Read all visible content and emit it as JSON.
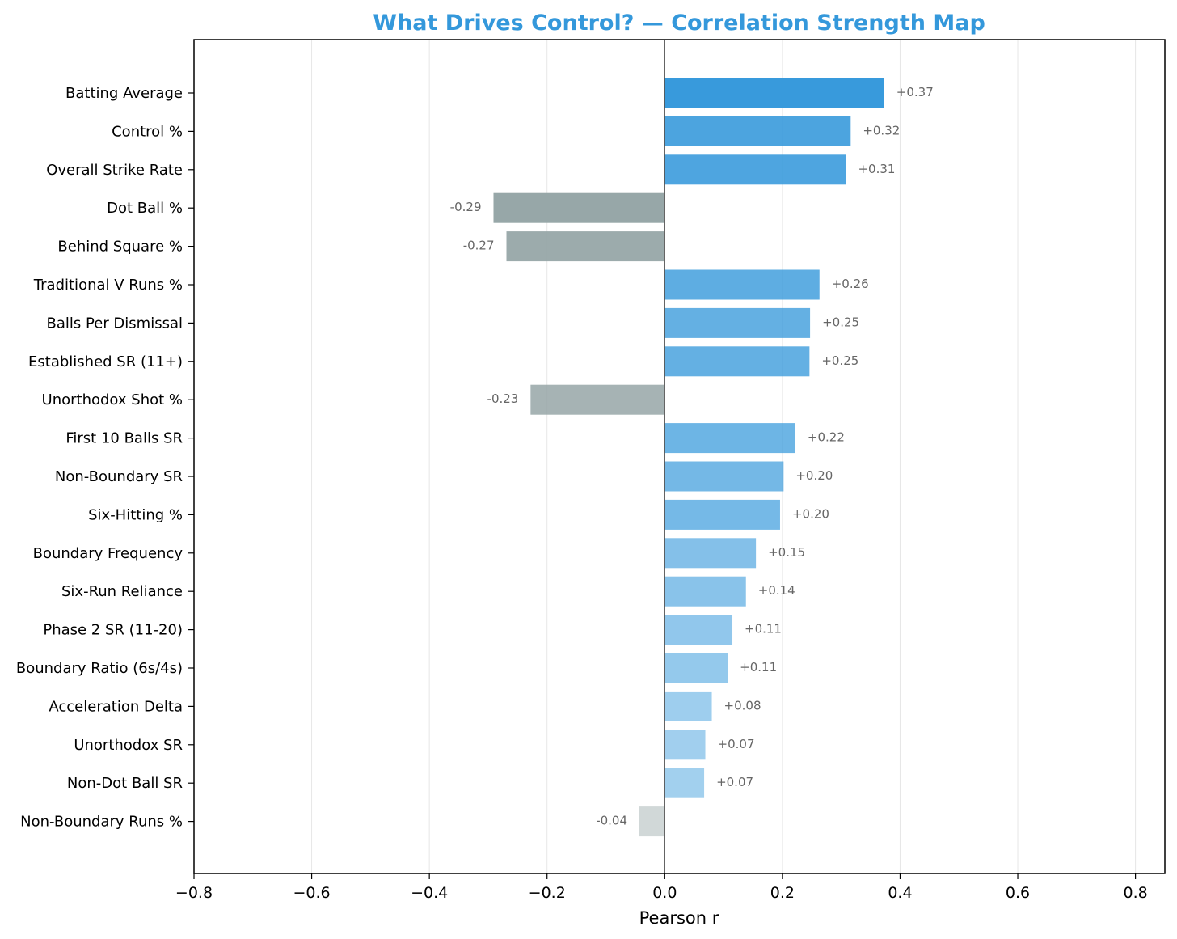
{
  "chart_data": {
    "type": "bar",
    "orientation": "horizontal",
    "title": "What Drives Control? — Correlation Strength Map",
    "xlabel": "Pearson r",
    "ylabel": "",
    "xlim": [
      -0.8,
      0.85
    ],
    "xticks": [
      -0.8,
      -0.6,
      -0.4,
      -0.2,
      0.0,
      0.2,
      0.4,
      0.6,
      0.8
    ],
    "xtick_labels": [
      "−0.8",
      "−0.6",
      "−0.4",
      "−0.2",
      "0.0",
      "0.2",
      "0.4",
      "0.6",
      "0.8"
    ],
    "grid": "vertical",
    "categories": [
      "Batting Average",
      "Control %",
      "Overall Strike Rate",
      "Dot Ball %",
      "Behind Square %",
      "Traditional V Runs %",
      "Balls Per Dismissal",
      "Established SR (11+)",
      "Unorthodox Shot %",
      "First 10 Balls SR",
      "Non-Boundary SR",
      "Six-Hitting %",
      "Boundary Frequency",
      "Six-Run Reliance",
      "Phase 2 SR (11-20)",
      "Boundary Ratio (6s/4s)",
      "Acceleration Delta",
      "Unorthodox SR",
      "Non-Dot Ball SR",
      "Non-Boundary Runs %"
    ],
    "values": [
      0.373,
      0.316,
      0.308,
      -0.291,
      -0.269,
      0.263,
      0.247,
      0.246,
      -0.228,
      0.222,
      0.202,
      0.196,
      0.155,
      0.138,
      0.115,
      0.107,
      0.08,
      0.069,
      0.067,
      -0.043
    ],
    "value_labels": [
      "+0.37",
      "+0.32",
      "+0.31",
      "-0.29",
      "-0.27",
      "+0.26",
      "+0.25",
      "+0.25",
      "-0.23",
      "+0.22",
      "+0.20",
      "+0.20",
      "+0.15",
      "+0.14",
      "+0.11",
      "+0.11",
      "+0.08",
      "+0.07",
      "+0.07",
      "-0.04"
    ],
    "colors": {
      "title": "#3498db",
      "positive": "#3498db",
      "negative": "#95a5a6",
      "zero_line": "#555555",
      "grid": "#e6e6e6",
      "value_label": "#666666"
    }
  }
}
